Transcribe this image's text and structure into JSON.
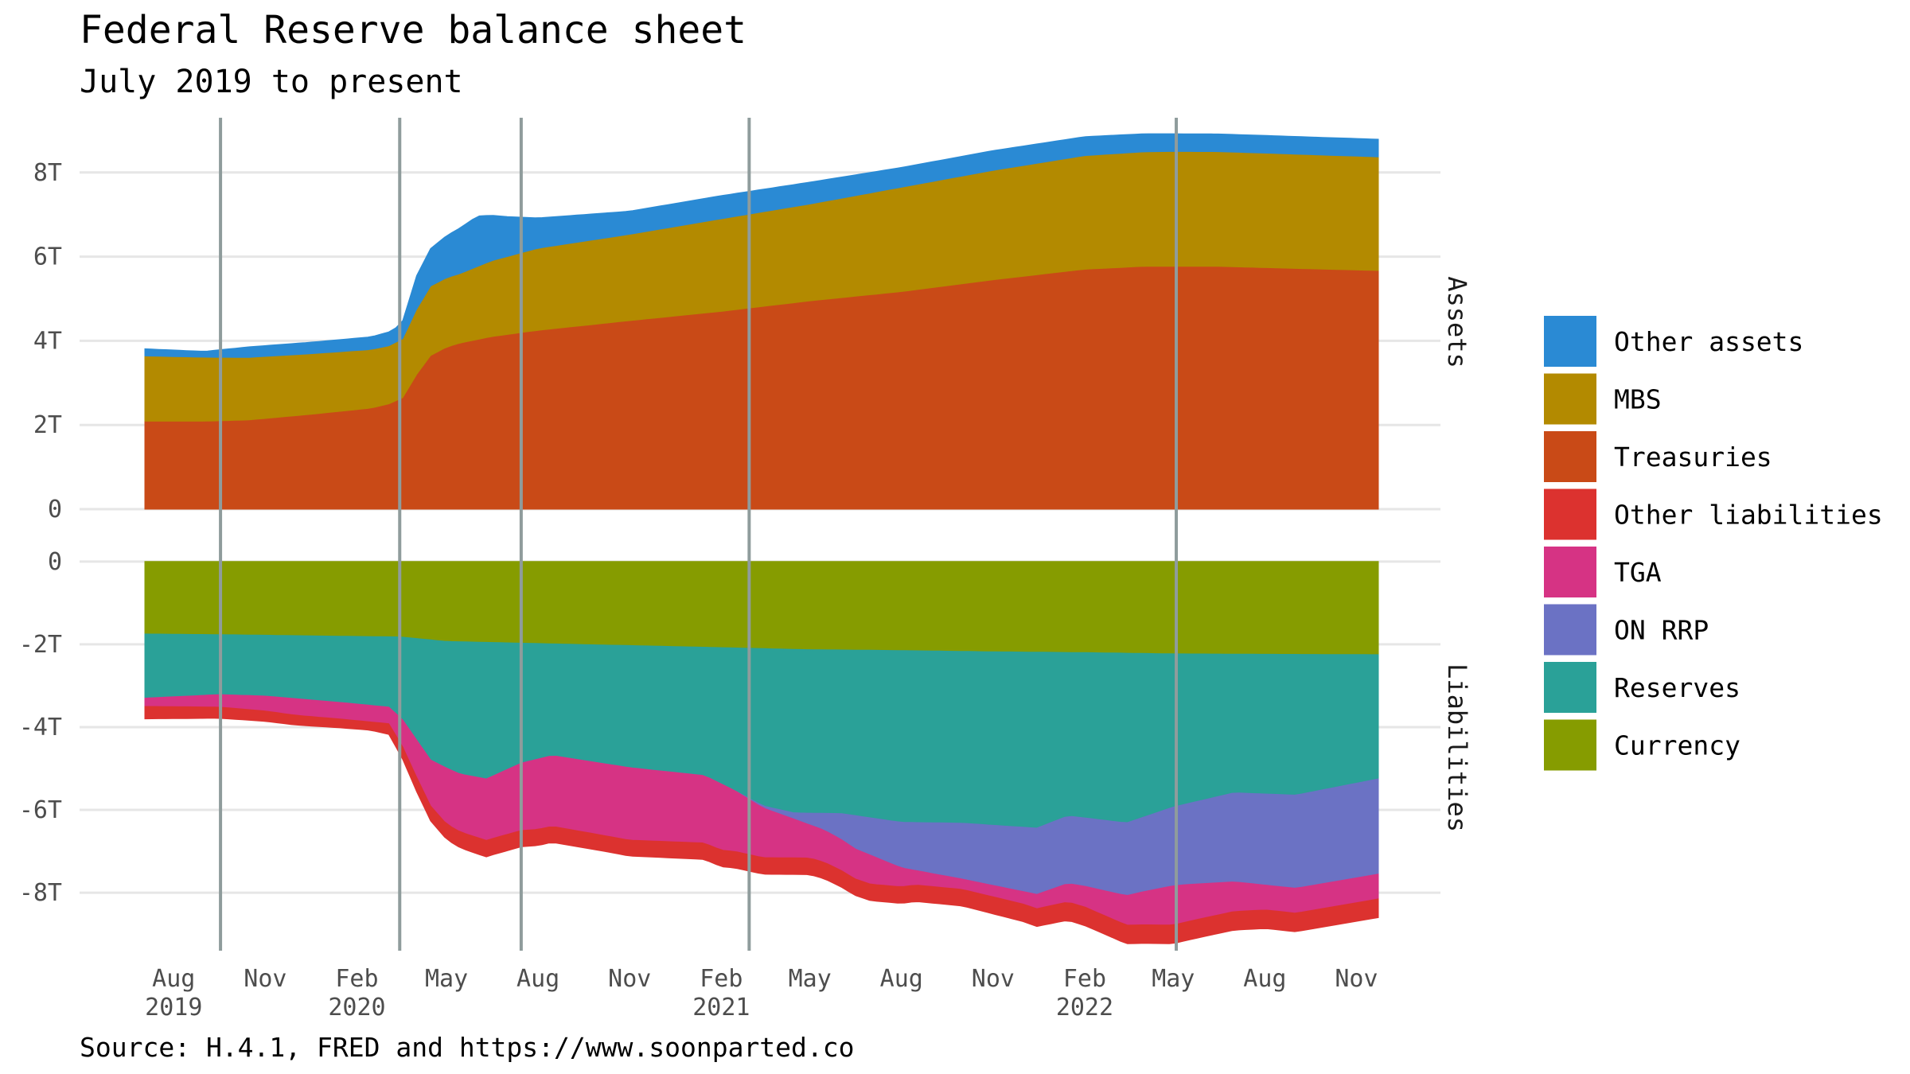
{
  "chart_data": {
    "type": "area",
    "title": "Federal Reserve balance sheet",
    "subtitle": "July 2019 to present",
    "caption": "Source: H.4.1, FRED and https://www.soonparted.co",
    "x_domain": [
      "2019-07-03",
      "2022-11-23"
    ],
    "x_ticks": [
      {
        "date": "2019-08-01",
        "month": "Aug",
        "year": "2019"
      },
      {
        "date": "2019-11-01",
        "month": "Nov",
        "year": ""
      },
      {
        "date": "2020-02-01",
        "month": "Feb",
        "year": "2020"
      },
      {
        "date": "2020-05-01",
        "month": "May",
        "year": ""
      },
      {
        "date": "2020-08-01",
        "month": "Aug",
        "year": ""
      },
      {
        "date": "2020-11-01",
        "month": "Nov",
        "year": ""
      },
      {
        "date": "2021-02-01",
        "month": "Feb",
        "year": "2021"
      },
      {
        "date": "2021-05-01",
        "month": "May",
        "year": ""
      },
      {
        "date": "2021-08-01",
        "month": "Aug",
        "year": ""
      },
      {
        "date": "2021-11-01",
        "month": "Nov",
        "year": ""
      },
      {
        "date": "2022-02-01",
        "month": "Feb",
        "year": "2022"
      },
      {
        "date": "2022-05-01",
        "month": "May",
        "year": ""
      },
      {
        "date": "2022-08-01",
        "month": "Aug",
        "year": ""
      },
      {
        "date": "2022-11-01",
        "month": "Nov",
        "year": ""
      }
    ],
    "event_lines": [
      "2019-09-17",
      "2020-03-15",
      "2020-07-15",
      "2021-03-01",
      "2022-05-04"
    ],
    "panels": [
      {
        "name": "Assets",
        "ylim": [
          0,
          9.3
        ],
        "y_ticks": [
          {
            "v": 0,
            "label": "0"
          },
          {
            "v": 2,
            "label": "2T"
          },
          {
            "v": 4,
            "label": "4T"
          },
          {
            "v": 6,
            "label": "6T"
          },
          {
            "v": 8,
            "label": "8T"
          }
        ],
        "series": [
          {
            "name": "Treasuries",
            "color": "#c94a17",
            "points": [
              [
                "2019-07-03",
                2.09
              ],
              [
                "2019-09-01",
                2.09
              ],
              [
                "2019-10-15",
                2.12
              ],
              [
                "2019-12-15",
                2.25
              ],
              [
                "2020-02-15",
                2.4
              ],
              [
                "2020-03-04",
                2.5
              ],
              [
                "2020-03-18",
                2.65
              ],
              [
                "2020-04-01",
                3.2
              ],
              [
                "2020-04-15",
                3.65
              ],
              [
                "2020-05-01",
                3.85
              ],
              [
                "2020-05-15",
                3.95
              ],
              [
                "2020-06-15",
                4.1
              ],
              [
                "2020-08-01",
                4.25
              ],
              [
                "2020-11-01",
                4.48
              ],
              [
                "2021-02-01",
                4.7
              ],
              [
                "2021-05-01",
                4.95
              ],
              [
                "2021-08-01",
                5.17
              ],
              [
                "2021-11-01",
                5.45
              ],
              [
                "2022-02-01",
                5.7
              ],
              [
                "2022-04-01",
                5.77
              ],
              [
                "2022-06-15",
                5.77
              ],
              [
                "2022-09-01",
                5.72
              ],
              [
                "2022-11-23",
                5.67
              ]
            ]
          },
          {
            "name": "MBS",
            "color": "#b38a00",
            "points": [
              [
                "2019-07-03",
                1.55
              ],
              [
                "2019-09-01",
                1.52
              ],
              [
                "2019-12-01",
                1.45
              ],
              [
                "2020-03-04",
                1.38
              ],
              [
                "2020-03-18",
                1.4
              ],
              [
                "2020-04-01",
                1.55
              ],
              [
                "2020-04-15",
                1.65
              ],
              [
                "2020-05-15",
                1.65
              ],
              [
                "2020-06-15",
                1.8
              ],
              [
                "2020-08-01",
                1.95
              ],
              [
                "2020-11-01",
                2.05
              ],
              [
                "2021-02-01",
                2.2
              ],
              [
                "2021-05-01",
                2.3
              ],
              [
                "2021-08-01",
                2.48
              ],
              [
                "2021-11-01",
                2.6
              ],
              [
                "2022-02-01",
                2.7
              ],
              [
                "2022-05-01",
                2.73
              ],
              [
                "2022-08-01",
                2.72
              ],
              [
                "2022-11-23",
                2.7
              ]
            ]
          },
          {
            "name": "Other assets",
            "color": "#2a8ad4",
            "points": [
              [
                "2019-07-03",
                0.17
              ],
              [
                "2019-09-01",
                0.14
              ],
              [
                "2019-10-15",
                0.25
              ],
              [
                "2020-02-15",
                0.3
              ],
              [
                "2020-03-15",
                0.35
              ],
              [
                "2020-04-01",
                0.8
              ],
              [
                "2020-05-01",
                1.0
              ],
              [
                "2020-06-01",
                1.2
              ],
              [
                "2020-07-01",
                0.95
              ],
              [
                "2020-08-01",
                0.72
              ],
              [
                "2020-11-01",
                0.55
              ],
              [
                "2021-02-01",
                0.55
              ],
              [
                "2021-05-01",
                0.52
              ],
              [
                "2021-08-01",
                0.47
              ],
              [
                "2021-11-01",
                0.47
              ],
              [
                "2022-02-01",
                0.45
              ],
              [
                "2022-05-01",
                0.42
              ],
              [
                "2022-08-01",
                0.42
              ],
              [
                "2022-11-23",
                0.42
              ]
            ]
          }
        ]
      },
      {
        "name": "Liabilities",
        "ylim": [
          -9.4,
          0.4
        ],
        "y_ticks": [
          {
            "v": 0,
            "label": "0"
          },
          {
            "v": -2,
            "label": "-2T"
          },
          {
            "v": -4,
            "label": "-4T"
          },
          {
            "v": -6,
            "label": "-6T"
          },
          {
            "v": -8,
            "label": "-8T"
          }
        ],
        "series": [
          {
            "name": "Currency",
            "color": "#869c00",
            "points": [
              [
                "2019-07-03",
                -1.75
              ],
              [
                "2019-10-01",
                -1.77
              ],
              [
                "2020-01-01",
                -1.8
              ],
              [
                "2020-03-15",
                -1.82
              ],
              [
                "2020-05-01",
                -1.93
              ],
              [
                "2020-08-01",
                -1.98
              ],
              [
                "2020-11-01",
                -2.03
              ],
              [
                "2021-02-01",
                -2.08
              ],
              [
                "2021-05-01",
                -2.13
              ],
              [
                "2021-08-01",
                -2.15
              ],
              [
                "2021-11-01",
                -2.18
              ],
              [
                "2022-02-01",
                -2.2
              ],
              [
                "2022-05-01",
                -2.23
              ],
              [
                "2022-08-01",
                -2.24
              ],
              [
                "2022-11-23",
                -2.25
              ]
            ]
          },
          {
            "name": "Reserves",
            "color": "#2aa198",
            "points": [
              [
                "2019-07-03",
                -1.55
              ],
              [
                "2019-09-15",
                -1.45
              ],
              [
                "2019-11-01",
                -1.47
              ],
              [
                "2020-01-15",
                -1.6
              ],
              [
                "2020-03-04",
                -1.7
              ],
              [
                "2020-03-18",
                -2.0
              ],
              [
                "2020-04-15",
                -2.9
              ],
              [
                "2020-05-15",
                -3.2
              ],
              [
                "2020-06-10",
                -3.3
              ],
              [
                "2020-07-15",
                -2.9
              ],
              [
                "2020-08-15",
                -2.7
              ],
              [
                "2020-11-01",
                -2.95
              ],
              [
                "2021-01-15",
                -3.1
              ],
              [
                "2021-02-15",
                -3.45
              ],
              [
                "2021-03-15",
                -3.8
              ],
              [
                "2021-04-15",
                -3.95
              ],
              [
                "2021-06-01",
                -3.95
              ],
              [
                "2021-08-01",
                -4.15
              ],
              [
                "2021-10-01",
                -4.15
              ],
              [
                "2021-12-15",
                -4.25
              ],
              [
                "2022-01-15",
                -3.95
              ],
              [
                "2022-03-15",
                -4.1
              ],
              [
                "2022-05-01",
                -3.7
              ],
              [
                "2022-07-01",
                -3.35
              ],
              [
                "2022-09-01",
                -3.4
              ],
              [
                "2022-11-23",
                -3.0
              ]
            ]
          },
          {
            "name": "ON RRP",
            "color": "#6b72c4",
            "points": [
              [
                "2019-07-03",
                0
              ],
              [
                "2021-02-15",
                0
              ],
              [
                "2021-03-15",
                -0.05
              ],
              [
                "2021-04-15",
                -0.15
              ],
              [
                "2021-05-15",
                -0.4
              ],
              [
                "2021-06-15",
                -0.8
              ],
              [
                "2021-08-01",
                -1.1
              ],
              [
                "2021-10-01",
                -1.35
              ],
              [
                "2021-12-15",
                -1.6
              ],
              [
                "2022-02-01",
                -1.65
              ],
              [
                "2022-04-01",
                -1.8
              ],
              [
                "2022-05-15",
                -1.95
              ],
              [
                "2022-07-01",
                -2.15
              ],
              [
                "2022-09-01",
                -2.25
              ],
              [
                "2022-11-23",
                -2.3
              ]
            ]
          },
          {
            "name": "TGA",
            "color": "#d63384",
            "points": [
              [
                "2019-07-03",
                -0.2
              ],
              [
                "2019-09-15",
                -0.3
              ],
              [
                "2019-12-01",
                -0.4
              ],
              [
                "2020-03-04",
                -0.4
              ],
              [
                "2020-04-01",
                -0.9
              ],
              [
                "2020-05-01",
                -1.35
              ],
              [
                "2020-06-15",
                -1.5
              ],
              [
                "2020-08-01",
                -1.7
              ],
              [
                "2020-11-01",
                -1.75
              ],
              [
                "2021-02-01",
                -1.6
              ],
              [
                "2021-03-15",
                -1.2
              ],
              [
                "2021-05-01",
                -0.8
              ],
              [
                "2021-07-01",
                -0.7
              ],
              [
                "2021-08-15",
                -0.35
              ],
              [
                "2021-10-01",
                -0.25
              ],
              [
                "2021-12-01",
                -0.3
              ],
              [
                "2022-02-01",
                -0.5
              ],
              [
                "2022-05-01",
                -0.95
              ],
              [
                "2022-08-01",
                -0.6
              ],
              [
                "2022-11-23",
                -0.6
              ]
            ]
          },
          {
            "name": "Other liabilities",
            "color": "#dc322f",
            "points": [
              [
                "2019-07-03",
                -0.3
              ],
              [
                "2019-11-01",
                -0.25
              ],
              [
                "2020-02-15",
                -0.2
              ],
              [
                "2020-04-01",
                -0.35
              ],
              [
                "2020-06-01",
                -0.4
              ],
              [
                "2020-10-01",
                -0.38
              ],
              [
                "2021-02-01",
                -0.4
              ],
              [
                "2021-06-01",
                -0.4
              ],
              [
                "2021-10-01",
                -0.4
              ],
              [
                "2022-02-01",
                -0.45
              ],
              [
                "2022-06-01",
                -0.45
              ],
              [
                "2022-11-23",
                -0.45
              ]
            ]
          }
        ]
      }
    ],
    "legend": {
      "placement": "right",
      "items": [
        {
          "label": "Other assets",
          "color": "#2a8ad4"
        },
        {
          "label": "MBS",
          "color": "#b38a00"
        },
        {
          "label": "Treasuries",
          "color": "#c94a17"
        },
        {
          "label": "Other liabilities",
          "color": "#dc322f"
        },
        {
          "label": "TGA",
          "color": "#d63384"
        },
        {
          "label": "ON RRP",
          "color": "#6b72c4"
        },
        {
          "label": "Reserves",
          "color": "#2aa198"
        },
        {
          "label": "Currency",
          "color": "#869c00"
        }
      ]
    }
  }
}
